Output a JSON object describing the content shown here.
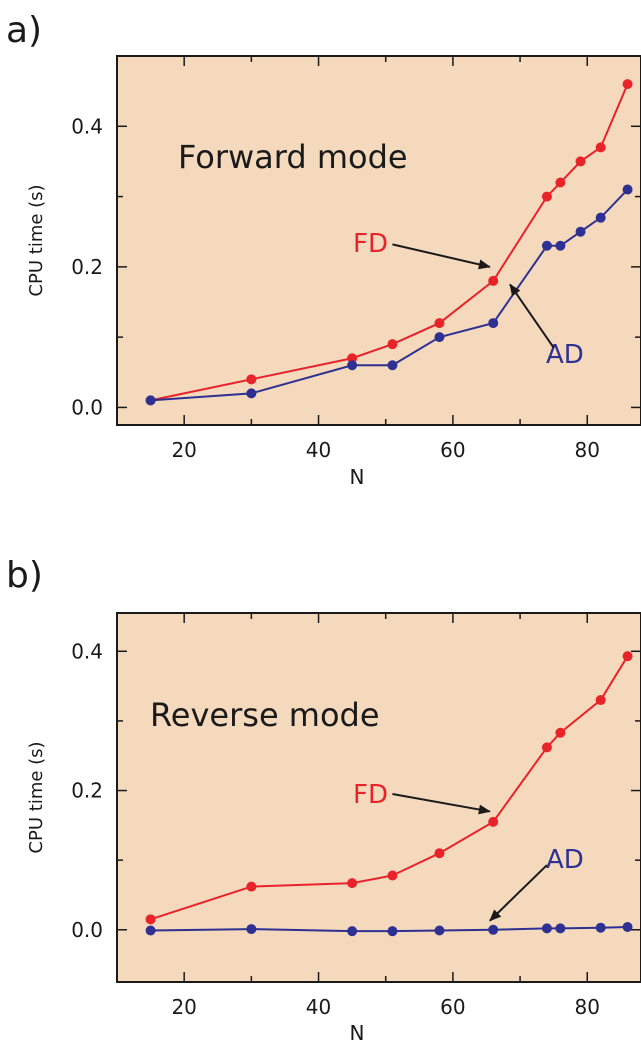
{
  "colors": {
    "background": "#f4d9bd",
    "fd": "#e8242a",
    "ad": "#2e3192",
    "axis": "#1a1a1a"
  },
  "chart_data": [
    {
      "panel_label": "a)",
      "type": "line",
      "annotation": "Forward mode",
      "xlabel": "N",
      "ylabel": "CPU time (s)",
      "xlim": [
        10,
        88
      ],
      "ylim": [
        -0.025,
        0.5
      ],
      "xticks": [
        20,
        40,
        60,
        80
      ],
      "yticks": [
        0.0,
        0.2,
        0.4
      ],
      "ytick_labels": [
        "0.0",
        "0.2",
        "0.4"
      ],
      "grid": false,
      "series": [
        {
          "name": "FD",
          "color": "#e8242a",
          "x": [
            15,
            30,
            45,
            51,
            58,
            66,
            74,
            76,
            79,
            82,
            86
          ],
          "y": [
            0.01,
            0.04,
            0.07,
            0.09,
            0.12,
            0.18,
            0.3,
            0.32,
            0.35,
            0.37,
            0.46
          ]
        },
        {
          "name": "AD",
          "color": "#2e3192",
          "x": [
            15,
            30,
            45,
            51,
            58,
            66,
            74,
            76,
            79,
            82,
            86
          ],
          "y": [
            0.01,
            0.02,
            0.06,
            0.06,
            0.1,
            0.12,
            0.23,
            0.23,
            0.25,
            0.27,
            0.31
          ]
        }
      ],
      "arrows": [
        {
          "label": "FD",
          "from": [
            51,
            0.232
          ],
          "to": [
            65.5,
            0.2
          ]
        },
        {
          "label": "AD",
          "from": [
            75,
            0.085
          ],
          "to": [
            68.5,
            0.175
          ]
        }
      ]
    },
    {
      "panel_label": "b)",
      "type": "line",
      "annotation": "Reverse mode",
      "xlabel": "N",
      "ylabel": "CPU time (s)",
      "xlim": [
        10,
        88
      ],
      "ylim": [
        -0.075,
        0.455
      ],
      "xticks": [
        20,
        40,
        60,
        80
      ],
      "yticks": [
        0.0,
        0.2,
        0.4
      ],
      "ytick_labels": [
        "0.0",
        "0.2",
        "0.4"
      ],
      "grid": false,
      "series": [
        {
          "name": "FD",
          "color": "#e8242a",
          "x": [
            15,
            30,
            45,
            51,
            58,
            66,
            74,
            76,
            82,
            86
          ],
          "y": [
            0.015,
            0.062,
            0.067,
            0.078,
            0.11,
            0.155,
            0.262,
            0.283,
            0.33,
            0.393
          ]
        },
        {
          "name": "AD",
          "color": "#2e3192",
          "x": [
            15,
            30,
            45,
            51,
            58,
            66,
            74,
            76,
            82,
            86
          ],
          "y": [
            -0.001,
            0.001,
            -0.002,
            -0.002,
            -0.001,
            0.0,
            0.002,
            0.002,
            0.003,
            0.004
          ]
        }
      ],
      "arrows": [
        {
          "label": "FD",
          "from": [
            51,
            0.195
          ],
          "to": [
            65.5,
            0.17
          ]
        },
        {
          "label": "AD",
          "from": [
            74,
            0.093
          ],
          "to": [
            65.5,
            0.013
          ]
        }
      ]
    }
  ]
}
